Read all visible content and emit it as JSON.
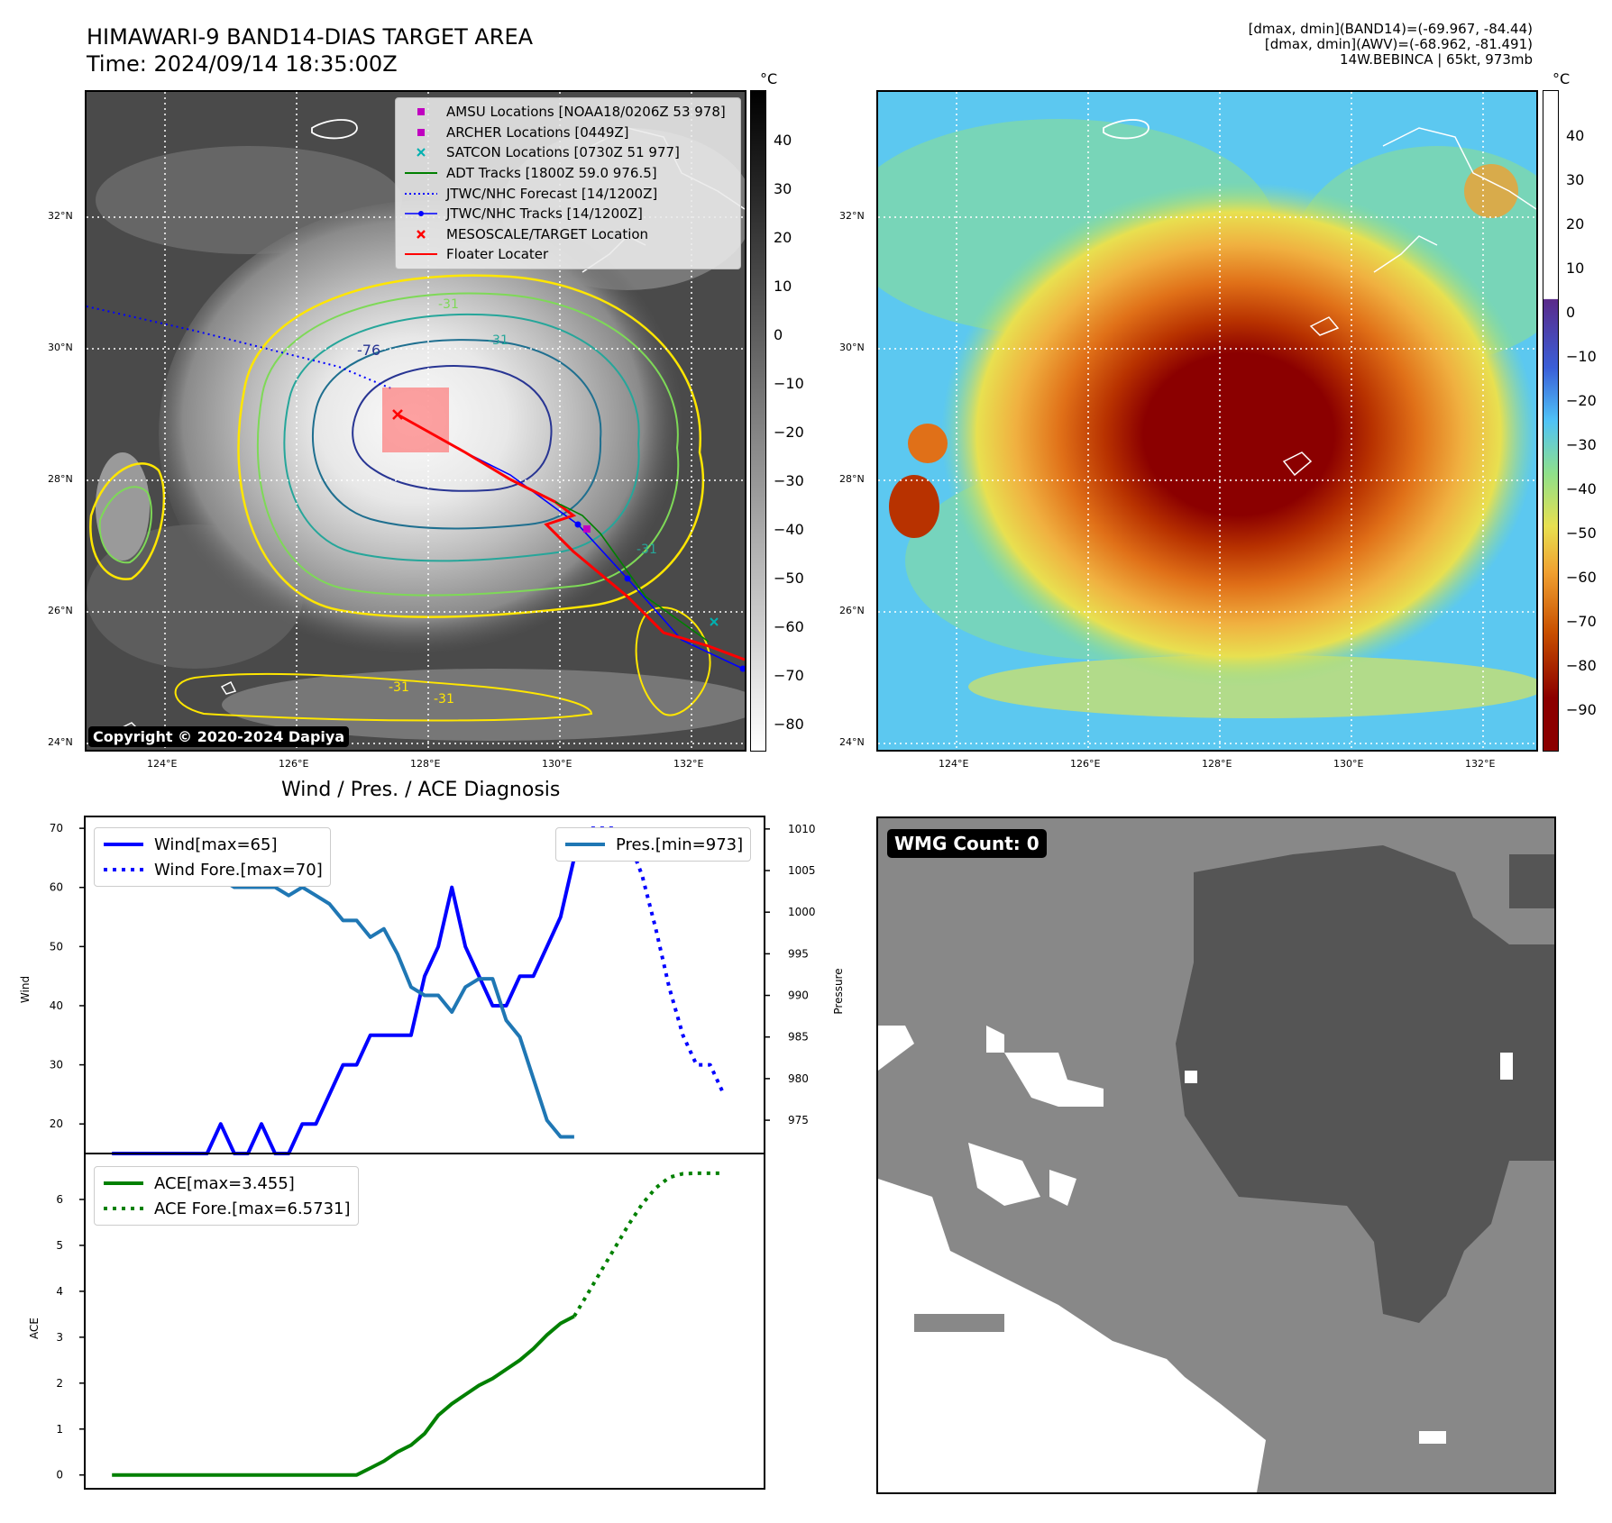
{
  "header": {
    "title_line1": "HIMAWARI-9 BAND14-DIAS TARGET AREA",
    "title_line2": "Time: 2024/09/14 18:35:00Z",
    "info_line1": "[dmax, dmin](BAND14)=(-69.967, -84.44)",
    "info_line2": "[dmax, dmin](AWV)=(-68.962, -81.491)",
    "info_line3": "14W.BEBINCA | 65kt, 973mb"
  },
  "map_axes": {
    "lat_labels": [
      "32°N",
      "30°N",
      "28°N",
      "26°N",
      "24°N"
    ],
    "lon_labels": [
      "124°E",
      "126°E",
      "128°E",
      "130°E",
      "132°E"
    ]
  },
  "colorbar_ir": {
    "unit": "°C",
    "labels": [
      "40",
      "30",
      "20",
      "10",
      "0",
      "−10",
      "−20",
      "−30",
      "−40",
      "−50",
      "−60",
      "−70",
      "−80"
    ],
    "colors": [
      "#000000",
      "#ffffff"
    ]
  },
  "colorbar_enh": {
    "unit": "°C",
    "labels": [
      "40",
      "30",
      "20",
      "10",
      "0",
      "−10",
      "−20",
      "−30",
      "−40",
      "−50",
      "−60",
      "−70",
      "−80",
      "−90"
    ],
    "colors": [
      "#ffffff",
      "#5a2a8a",
      "#3a5fd8",
      "#4fc3f7",
      "#8fe08a",
      "#e8e050",
      "#f0a030",
      "#c85000",
      "#8b0000"
    ]
  },
  "legend_ir": {
    "items": [
      {
        "label": "AMSU Locations [NOAA18/0206Z 53 978]",
        "color": "#c000c0",
        "kind": "square"
      },
      {
        "label": "ARCHER Locations [0449Z]",
        "color": "#c000c0",
        "kind": "square"
      },
      {
        "label": "SATCON Locations [0730Z 51 977]",
        "color": "#00b0b0",
        "kind": "x"
      },
      {
        "label": "ADT Tracks [1800Z 59.0 976.5]",
        "color": "#008000",
        "kind": "line"
      },
      {
        "label": "JTWC/NHC Forecast [14/1200Z]",
        "color": "#0000ff",
        "kind": "dotted"
      },
      {
        "label": "JTWC/NHC Tracks [14/1200Z]",
        "color": "#0000ff",
        "kind": "dotline"
      },
      {
        "label": "MESOSCALE/TARGET Location",
        "color": "#ff0000",
        "kind": "x"
      },
      {
        "label": "Floater Locater",
        "color": "#ff0000",
        "kind": "line"
      }
    ]
  },
  "contour_labels": [
    "-31",
    "-76",
    "-31",
    "-31",
    "-31",
    "-31"
  ],
  "copyright": "Copyright © 2020-2024 Dapiya",
  "wind_panel": {
    "title": "Wind / Pres. / ACE Diagnosis",
    "ylabel_left": "Wind",
    "ylabel_right": "Pressure",
    "legend_wind": "Wind[max=65]",
    "legend_wind_fore": "Wind Fore.[max=70]",
    "legend_pres": "Pres.[min=973]"
  },
  "ace_panel": {
    "ylabel": "ACE",
    "legend_ace": "ACE[max=3.455]",
    "legend_ace_fore": "ACE Fore.[max=6.5731]"
  },
  "wmg": {
    "badge": "WMG Count: 0"
  },
  "chart_data": [
    {
      "type": "line",
      "name": "wind_pressure",
      "title": "Wind / Pres. / ACE Diagnosis",
      "x": [
        0,
        1,
        2,
        3,
        4,
        5,
        6,
        7,
        8,
        9,
        10,
        11,
        12,
        13,
        14,
        15,
        16,
        17,
        18,
        19,
        20,
        21,
        22,
        23,
        24,
        25,
        26,
        27,
        28,
        29,
        30,
        31,
        32,
        33,
        34,
        35,
        36,
        37,
        38,
        39,
        40,
        41,
        42,
        43,
        44,
        45
      ],
      "ylabel": "Wind",
      "y2label": "Pressure",
      "ylim": [
        15,
        72
      ],
      "y2lim": [
        971,
        1011.5
      ],
      "xlim": [
        -2,
        48
      ],
      "yticks": [
        20,
        30,
        40,
        50,
        60,
        70
      ],
      "y2ticks": [
        975,
        980,
        985,
        990,
        995,
        1000,
        1005,
        1010
      ],
      "series": [
        {
          "name": "Wind[max=65]",
          "axis": "left",
          "style": "solid",
          "color": "#0000ff",
          "x": [
            0,
            1,
            2,
            3,
            4,
            5,
            6,
            7,
            8,
            9,
            10,
            11,
            12,
            13,
            14,
            15,
            16,
            17,
            18,
            19,
            20,
            21,
            22,
            23,
            24,
            25,
            26,
            27,
            28,
            29,
            30,
            31,
            32,
            33,
            34
          ],
          "values": [
            15,
            15,
            15,
            15,
            15,
            15,
            15,
            15,
            20,
            15,
            15,
            20,
            15,
            15,
            20,
            20,
            25,
            30,
            30,
            35,
            35,
            35,
            35,
            45,
            50,
            60,
            50,
            45,
            40,
            40,
            45,
            45,
            50,
            55,
            65
          ]
        },
        {
          "name": "Wind Fore.[max=70]",
          "axis": "left",
          "style": "dotted",
          "color": "#0000ff",
          "x": [
            34,
            35,
            36,
            37,
            38,
            39,
            40,
            41,
            42,
            43,
            44,
            45
          ],
          "values": [
            65,
            70,
            70,
            70,
            68,
            62,
            53,
            43,
            35,
            30,
            30,
            25
          ]
        },
        {
          "name": "Pres.[min=973]",
          "axis": "right",
          "style": "solid",
          "color": "#1f77b4",
          "x": [
            0,
            1,
            2,
            3,
            4,
            5,
            6,
            7,
            8,
            9,
            10,
            11,
            12,
            13,
            14,
            15,
            16,
            17,
            18,
            19,
            20,
            21,
            22,
            23,
            24,
            25,
            26,
            27,
            28,
            29,
            30,
            31,
            32,
            33,
            34
          ],
          "values": [
            1010,
            1008,
            1008,
            1008,
            1009,
            1006,
            1006,
            1004,
            1004,
            1003,
            1003,
            1003,
            1003,
            1002,
            1003,
            1002,
            1001,
            999,
            999,
            997,
            998,
            995,
            991,
            990,
            990,
            988,
            991,
            992,
            992,
            987,
            985,
            980,
            975,
            973,
            973
          ]
        }
      ]
    },
    {
      "type": "line",
      "name": "ace",
      "ylabel": "ACE",
      "ylim": [
        -0.3,
        7.0
      ],
      "xlim": [
        -2,
        48
      ],
      "yticks": [
        0,
        1,
        2,
        3,
        4,
        5,
        6
      ],
      "series": [
        {
          "name": "ACE[max=3.455]",
          "style": "solid",
          "color": "#008000",
          "x": [
            0,
            1,
            2,
            3,
            4,
            5,
            6,
            7,
            8,
            9,
            10,
            11,
            12,
            13,
            14,
            15,
            16,
            17,
            18,
            19,
            20,
            21,
            22,
            23,
            24,
            25,
            26,
            27,
            28,
            29,
            30,
            31,
            32,
            33,
            34
          ],
          "values": [
            0,
            0,
            0,
            0,
            0,
            0,
            0,
            0,
            0,
            0,
            0,
            0,
            0,
            0,
            0,
            0,
            0,
            0,
            0,
            0.15,
            0.3,
            0.5,
            0.65,
            0.9,
            1.3,
            1.55,
            1.75,
            1.95,
            2.1,
            2.3,
            2.5,
            2.75,
            3.05,
            3.3,
            3.455
          ]
        },
        {
          "name": "ACE Fore.[max=6.5731]",
          "style": "dotted",
          "color": "#008000",
          "x": [
            34,
            35,
            36,
            37,
            38,
            39,
            40,
            41,
            42,
            43,
            44,
            45
          ],
          "values": [
            3.455,
            3.95,
            4.45,
            4.95,
            5.45,
            5.9,
            6.25,
            6.48,
            6.56,
            6.57,
            6.57,
            6.57
          ]
        }
      ]
    }
  ]
}
